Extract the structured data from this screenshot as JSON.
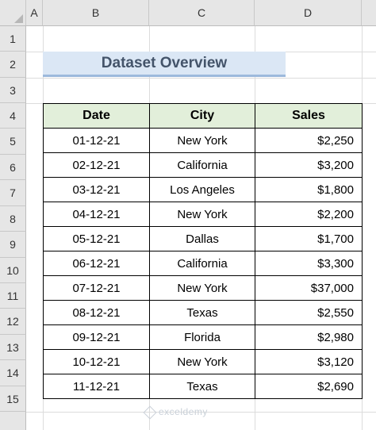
{
  "columns": [
    "A",
    "B",
    "C",
    "D"
  ],
  "rows": [
    "1",
    "2",
    "3",
    "4",
    "5",
    "6",
    "7",
    "8",
    "9",
    "10",
    "11",
    "12",
    "13",
    "14",
    "15"
  ],
  "title": "Dataset Overview",
  "table": {
    "headers": [
      "Date",
      "City",
      "Sales"
    ],
    "rows": [
      {
        "date": "01-12-21",
        "city": "New York",
        "sales": "$2,250"
      },
      {
        "date": "02-12-21",
        "city": "California",
        "sales": "$3,200"
      },
      {
        "date": "03-12-21",
        "city": "Los Angeles",
        "sales": "$1,800"
      },
      {
        "date": "04-12-21",
        "city": "New York",
        "sales": "$2,200"
      },
      {
        "date": "05-12-21",
        "city": "Dallas",
        "sales": "$1,700"
      },
      {
        "date": "06-12-21",
        "city": "California",
        "sales": "$3,300"
      },
      {
        "date": "07-12-21",
        "city": "New York",
        "sales": "$37,000"
      },
      {
        "date": "08-12-21",
        "city": "Texas",
        "sales": "$2,550"
      },
      {
        "date": "09-12-21",
        "city": "Florida",
        "sales": "$2,980"
      },
      {
        "date": "10-12-21",
        "city": "New York",
        "sales": "$3,120"
      },
      {
        "date": "11-12-21",
        "city": "Texas",
        "sales": "$2,690"
      }
    ]
  },
  "watermark": "exceldemy",
  "colors": {
    "header_fill": "#e2efda",
    "title_fill": "#dbe7f5",
    "title_text": "#44546a"
  }
}
